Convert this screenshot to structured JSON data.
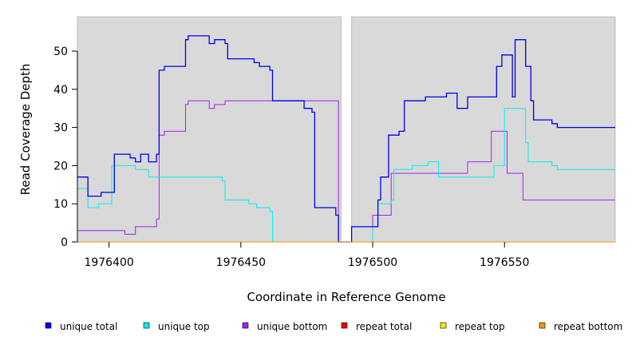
{
  "chart_data": {
    "type": "line",
    "title": "",
    "xlabel": "Coordinate in Reference Genome",
    "ylabel": "Read Coverage Depth",
    "xlim": [
      1976388,
      1976592
    ],
    "ylim": [
      0,
      59
    ],
    "x_ticks": [
      1976400,
      1976450,
      1976500,
      1976550
    ],
    "y_ticks": [
      0,
      10,
      20,
      30,
      40,
      50
    ],
    "gap": [
      1976488,
      1976492
    ],
    "grid": false,
    "background": "#d9d9d9",
    "legend_position": "bottom",
    "series": [
      {
        "name": "unique total",
        "color": "#0000ee",
        "steps": [
          [
            1976388,
            17
          ],
          [
            1976392,
            12
          ],
          [
            1976397,
            13
          ],
          [
            1976402,
            23
          ],
          [
            1976408,
            22
          ],
          [
            1976410,
            21
          ],
          [
            1976412,
            23
          ],
          [
            1976415,
            21
          ],
          [
            1976418,
            23
          ],
          [
            1976419,
            45
          ],
          [
            1976421,
            46
          ],
          [
            1976429,
            53
          ],
          [
            1976430,
            54
          ],
          [
            1976434,
            54
          ],
          [
            1976438,
            52
          ],
          [
            1976440,
            53
          ],
          [
            1976444,
            52
          ],
          [
            1976445,
            48
          ],
          [
            1976451,
            48
          ],
          [
            1976455,
            47
          ],
          [
            1976457,
            46
          ],
          [
            1976461,
            45
          ],
          [
            1976462,
            37
          ],
          [
            1976470,
            37
          ],
          [
            1976474,
            35
          ],
          [
            1976477,
            34
          ],
          [
            1976478,
            9
          ],
          [
            1976486,
            7
          ],
          [
            1976487,
            0
          ],
          [
            1976492,
            4
          ],
          [
            1976500,
            4
          ],
          [
            1976502,
            11
          ],
          [
            1976503,
            17
          ],
          [
            1976506,
            28
          ],
          [
            1976510,
            29
          ],
          [
            1976512,
            37
          ],
          [
            1976516,
            37
          ],
          [
            1976520,
            38
          ],
          [
            1976528,
            39
          ],
          [
            1976532,
            35
          ],
          [
            1976536,
            38
          ],
          [
            1976545,
            38
          ],
          [
            1976547,
            46
          ],
          [
            1976549,
            49
          ],
          [
            1976553,
            38
          ],
          [
            1976554,
            53
          ],
          [
            1976557,
            53
          ],
          [
            1976558,
            46
          ],
          [
            1976560,
            37
          ],
          [
            1976561,
            32
          ],
          [
            1976568,
            31
          ],
          [
            1976570,
            30
          ],
          [
            1976592,
            30
          ]
        ]
      },
      {
        "name": "unique top",
        "color": "#00eeee",
        "steps": [
          [
            1976388,
            14
          ],
          [
            1976392,
            9
          ],
          [
            1976396,
            10
          ],
          [
            1976401,
            20
          ],
          [
            1976410,
            19
          ],
          [
            1976412,
            19
          ],
          [
            1976415,
            17
          ],
          [
            1976419,
            17
          ],
          [
            1976429,
            17
          ],
          [
            1976443,
            16
          ],
          [
            1976444,
            11
          ],
          [
            1976453,
            10
          ],
          [
            1976456,
            9
          ],
          [
            1976461,
            8
          ],
          [
            1976462,
            0
          ],
          [
            1976487,
            0
          ],
          [
            1976492,
            0
          ],
          [
            1976500,
            4
          ],
          [
            1976502,
            10
          ],
          [
            1976507,
            11
          ],
          [
            1976508,
            19
          ],
          [
            1976515,
            20
          ],
          [
            1976521,
            21
          ],
          [
            1976525,
            17
          ],
          [
            1976533,
            17
          ],
          [
            1976546,
            20
          ],
          [
            1976550,
            35
          ],
          [
            1976558,
            26
          ],
          [
            1976559,
            21
          ],
          [
            1976564,
            21
          ],
          [
            1976568,
            20
          ],
          [
            1976570,
            19
          ],
          [
            1976592,
            19
          ]
        ]
      },
      {
        "name": "unique bottom",
        "color": "#a020f0",
        "steps": [
          [
            1976388,
            3
          ],
          [
            1976397,
            3
          ],
          [
            1976406,
            2
          ],
          [
            1976410,
            4
          ],
          [
            1976418,
            6
          ],
          [
            1976419,
            28
          ],
          [
            1976421,
            29
          ],
          [
            1976429,
            36
          ],
          [
            1976430,
            37
          ],
          [
            1976434,
            37
          ],
          [
            1976438,
            35
          ],
          [
            1976440,
            36
          ],
          [
            1976444,
            37
          ],
          [
            1976450,
            37
          ],
          [
            1976487,
            0
          ],
          [
            1976492,
            0
          ],
          [
            1976500,
            7
          ],
          [
            1976503,
            7
          ],
          [
            1976507,
            18
          ],
          [
            1976512,
            18
          ],
          [
            1976520,
            18
          ],
          [
            1976525,
            18
          ],
          [
            1976536,
            21
          ],
          [
            1976545,
            29
          ],
          [
            1976551,
            18
          ],
          [
            1976557,
            11
          ],
          [
            1976592,
            11
          ]
        ]
      },
      {
        "name": "repeat total",
        "color": "#ee0000",
        "steps": [
          [
            1976388,
            0
          ],
          [
            1976592,
            0
          ]
        ]
      },
      {
        "name": "repeat top",
        "color": "#eeee00",
        "steps": [
          [
            1976388,
            0
          ],
          [
            1976592,
            0
          ]
        ]
      },
      {
        "name": "repeat bottom",
        "color": "#ee9a00",
        "steps": [
          [
            1976388,
            0
          ],
          [
            1976592,
            0
          ]
        ]
      }
    ]
  }
}
